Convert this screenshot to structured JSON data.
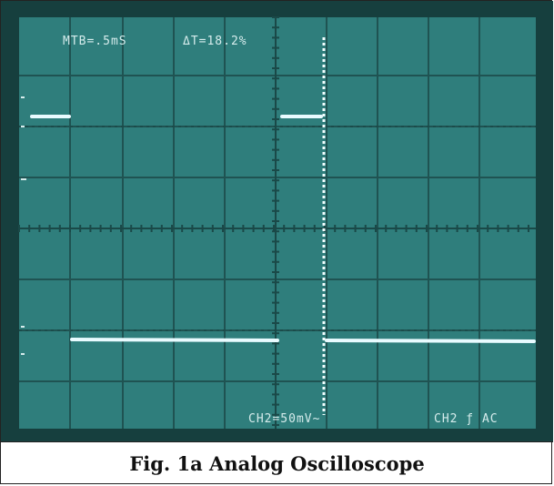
{
  "scope": {
    "readouts": {
      "mtb": "MTB=.5mS",
      "delta_t": "ΔT=18.2%",
      "ch2_volts": "CH2=50mV~",
      "ch2_trigger": "CH2 ƒ AC"
    },
    "colors": {
      "screen": "#2f7e7c",
      "grid": "#1f5352",
      "trace": "#e9fbff",
      "cursor": "#f2ffff"
    }
  },
  "caption": "Fig. 1a Analog Oscilloscope"
}
